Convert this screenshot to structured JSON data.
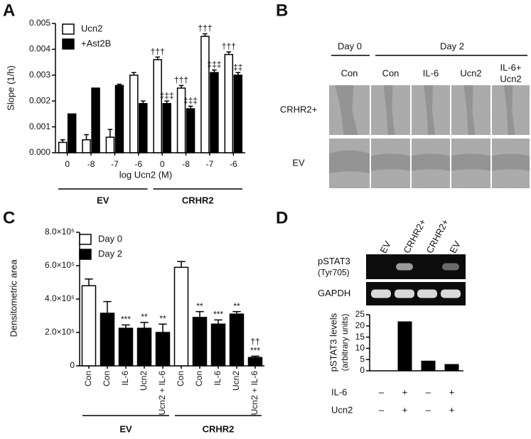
{
  "panel_labels": [
    "A",
    "B",
    "C",
    "D"
  ],
  "micrographs": {
    "days": [
      "Day 0",
      "Day 2"
    ],
    "columns": [
      [
        "Con"
      ],
      [
        "Con"
      ],
      [
        "IL-6"
      ],
      [
        "Ucn2"
      ],
      [
        "IL-6+",
        "Ucn2"
      ]
    ],
    "rows": [
      "CRHR2+",
      "EV"
    ]
  },
  "blot": {
    "lanes": [
      "EV",
      "CRHR2+",
      "CRHR2+",
      "EV"
    ],
    "rows": [
      [
        "pSTAT3",
        "(Tyr705)"
      ],
      [
        "GAPDH"
      ]
    ]
  },
  "chart_data": [
    {
      "type": "bar",
      "x_label": "log Ucn2 (M)",
      "y_label": "Slope (1/h)",
      "categories": [
        "0",
        "-8",
        "-7",
        "-6",
        "0",
        "-8",
        "-7",
        "-6"
      ],
      "group_labels": [
        "EV",
        "CRHR2"
      ],
      "series": [
        {
          "name": "Ucn2",
          "color": "#ffffff",
          "values": [
            0.0004,
            0.0005,
            0.0006,
            0.003,
            0.0036,
            0.0025,
            0.0045,
            0.0038
          ],
          "errors": [
            0.0001,
            0.0002,
            0.0003,
            0.0001,
            0.0001,
            0.0001,
            0.0001,
            0.0001
          ],
          "annotations": [
            null,
            null,
            null,
            null,
            [
              "†††"
            ],
            [
              "†††"
            ],
            [
              "†††"
            ],
            [
              "†††"
            ]
          ]
        },
        {
          "name": "+Ast2B",
          "color": "#000000",
          "values": [
            0.0015,
            0.0025,
            0.0026,
            0.0019,
            0.0019,
            0.0017,
            0.0031,
            0.003
          ],
          "errors": [
            null,
            null,
            5e-05,
            0.0001,
            0.0001,
            0.0001,
            0.0001,
            0.0001
          ],
          "annotations": [
            null,
            null,
            null,
            null,
            [
              "‡‡‡"
            ],
            [
              "‡‡‡"
            ],
            [
              "‡‡‡"
            ],
            [
              "‡‡"
            ]
          ]
        }
      ],
      "ylim": [
        0,
        0.005
      ],
      "yticks": [
        {
          "value": 0,
          "label": "0.000"
        },
        {
          "value": 0.001,
          "label": "0.001"
        },
        {
          "value": 0.002,
          "label": "0.002"
        },
        {
          "value": 0.003,
          "label": "0.003"
        },
        {
          "value": 0.004,
          "label": "0.004"
        },
        {
          "value": 0.005,
          "label": "0.005"
        }
      ]
    },
    {
      "type": "bar",
      "y_label": "Densitometric area",
      "categories": [
        "Con",
        "Con",
        "IL-6",
        "Ucn2",
        "Ucn2 + IL-6",
        "Con",
        "Con",
        "IL-6",
        "Ucn2",
        "Ucn2 + IL-6"
      ],
      "group_labels": [
        "EV",
        "CRHR2"
      ],
      "series": [
        {
          "name": "Day 0",
          "color": "#ffffff",
          "values": [
            480000,
            null,
            null,
            null,
            null,
            590000,
            null,
            null,
            null,
            null
          ],
          "errors": [
            40000,
            null,
            null,
            null,
            null,
            35000,
            null,
            null,
            null,
            null
          ],
          "annotations": [
            null,
            null,
            null,
            null,
            null,
            null,
            null,
            null,
            null,
            null
          ]
        },
        {
          "name": "Day 2",
          "color": "#000000",
          "values": [
            null,
            315000,
            225000,
            225000,
            200000,
            null,
            290000,
            250000,
            310000,
            50000
          ],
          "errors": [
            null,
            70000,
            20000,
            35000,
            50000,
            null,
            35000,
            25000,
            15000,
            8000
          ],
          "annotations": [
            null,
            null,
            [
              "***"
            ],
            [
              "**"
            ],
            [
              "**"
            ],
            null,
            [
              "**"
            ],
            [
              "***"
            ],
            [
              "**"
            ],
            [
              "††",
              "***"
            ]
          ]
        }
      ],
      "ylim": [
        0,
        800000
      ],
      "yticks": [
        0,
        {
          "value": 200000,
          "label": "2.0×10⁵"
        },
        {
          "value": 400000,
          "label": "4.0×10⁵"
        },
        {
          "value": 600000,
          "label": "6.0×10⁵"
        },
        {
          "value": 800000,
          "label": "8.0×10⁵"
        }
      ]
    },
    {
      "type": "bar",
      "y_label": "pSTAT3 levels",
      "y_sublabel": "(arbitrary units)",
      "values": [
        0,
        22,
        4.5,
        3
      ],
      "color": "#000000",
      "conditions": [
        {
          "name": "IL-6",
          "values": [
            "–",
            "+",
            "–",
            "+"
          ]
        },
        {
          "name": "Ucn2",
          "values": [
            "–",
            "+",
            "–",
            "+"
          ]
        }
      ],
      "ylim": [
        0,
        25
      ],
      "yticks": [
        0,
        5,
        10,
        15,
        20,
        25
      ]
    }
  ]
}
